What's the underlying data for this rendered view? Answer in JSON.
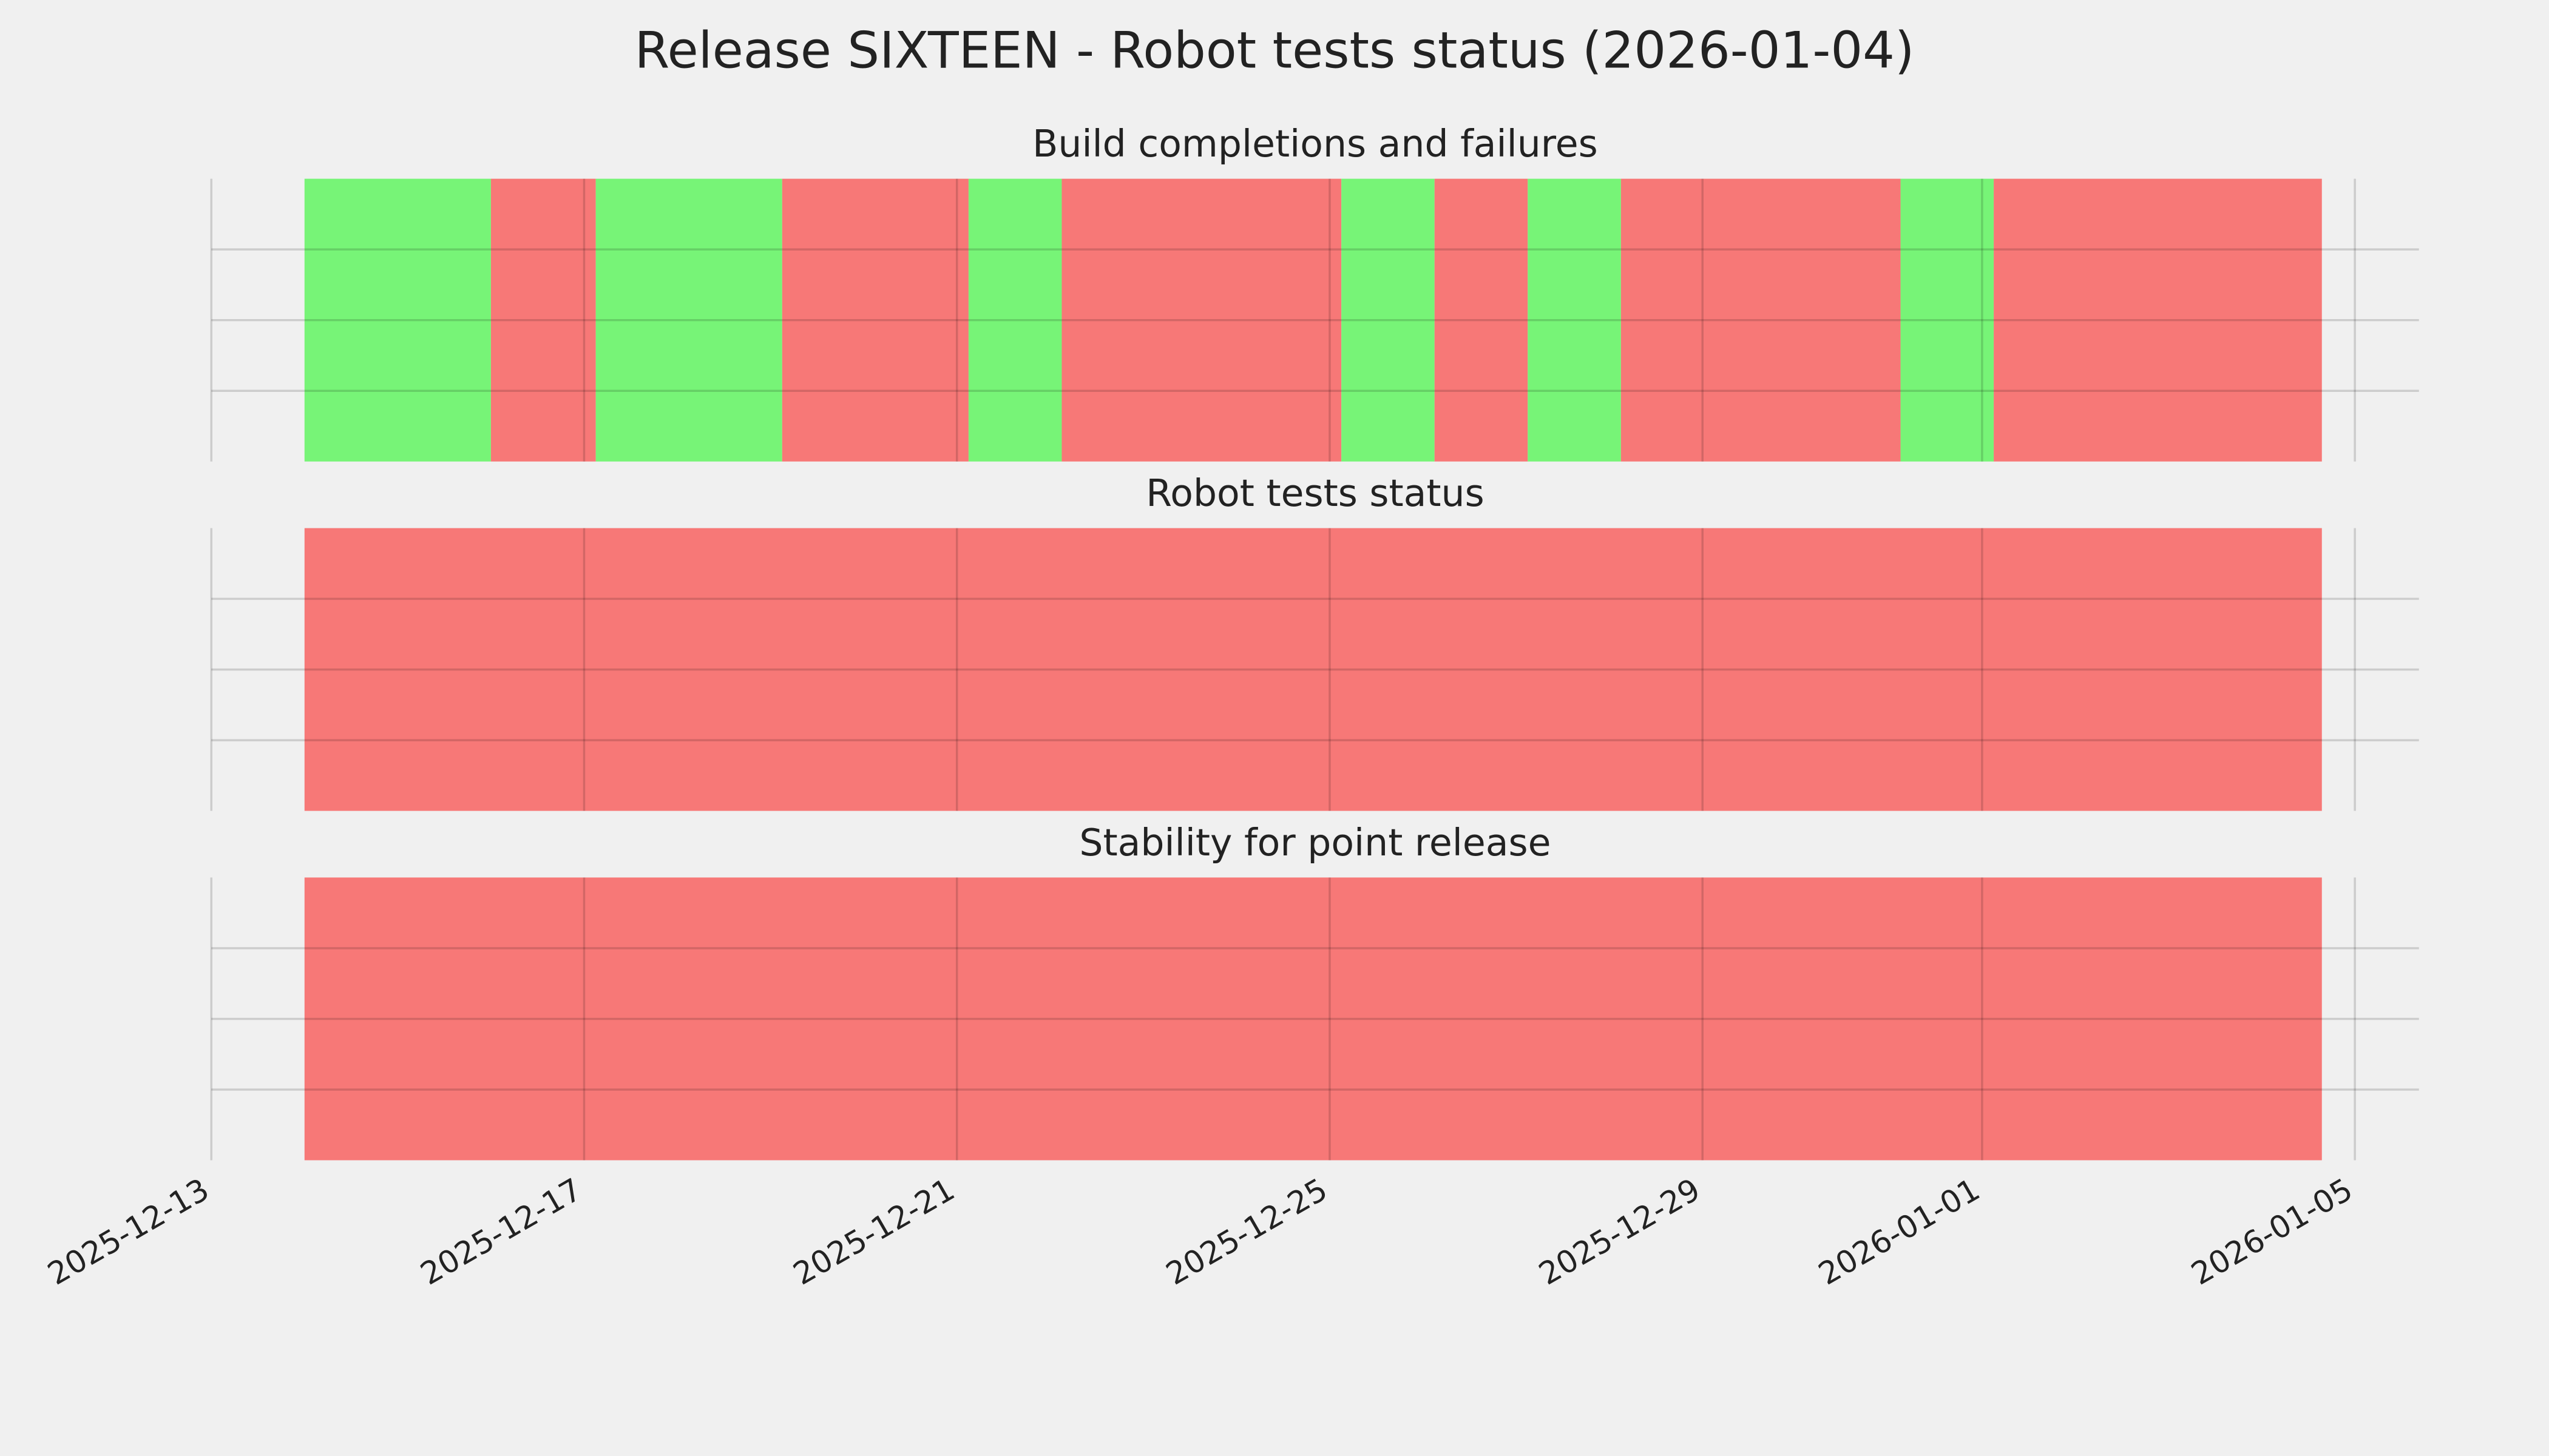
{
  "title": "Release SIXTEEN - Robot tests status (2026-01-04)",
  "chart_data": [
    {
      "type": "timeline",
      "title": "Build completions and failures",
      "starts": [
        "2025-12-14",
        "2025-12-16",
        "2025-12-17T03:00",
        "2025-12-19T03:00",
        "2025-12-21T03:00",
        "2025-12-22T03:00",
        "2025-12-25T03:00",
        "2025-12-26T03:00",
        "2025-12-27T03:00",
        "2025-12-28T03:00",
        "2025-12-31T03:00",
        "2026-01-01T03:00"
      ],
      "ends": [
        "2025-12-16",
        "2025-12-17T03:00",
        "2025-12-19T03:00",
        "2025-12-21T03:00",
        "2025-12-22T03:00",
        "2025-12-25T03:00",
        "2025-12-26T03:00",
        "2025-12-27T03:00",
        "2025-12-28T03:00",
        "2025-12-31T03:00",
        "2026-01-01T03:00",
        "2026-01-04T15:30"
      ],
      "colors": [
        "#77f477",
        "#f77877",
        "#77f477",
        "#f77877",
        "#77f477",
        "#f77877",
        "#77f477",
        "#f77877",
        "#77f477",
        "#f77877",
        "#77f477",
        "#f77877"
      ],
      "xlim": [
        "2025-12-13",
        "2026-01-05T16:30"
      ],
      "xticks": [
        "2025-12-13",
        "2025-12-17",
        "2025-12-21",
        "2025-12-25",
        "2025-12-29",
        "2026-01-01",
        "2026-01-05"
      ],
      "ylim": [
        0,
        1
      ],
      "yticks": [
        0.25,
        0.5,
        0.75
      ],
      "grid": true,
      "show_xtick_labels": false
    },
    {
      "type": "timeline",
      "title": "Robot tests status",
      "starts": [
        "2025-12-14"
      ],
      "ends": [
        "2026-01-04T15:30"
      ],
      "colors": [
        "#f77877"
      ],
      "xlim": [
        "2025-12-13",
        "2026-01-05T16:30"
      ],
      "xticks": [
        "2025-12-13",
        "2025-12-17",
        "2025-12-21",
        "2025-12-25",
        "2025-12-29",
        "2026-01-01",
        "2026-01-05"
      ],
      "ylim": [
        0,
        1
      ],
      "yticks": [
        0.25,
        0.5,
        0.75
      ],
      "grid": true,
      "show_xtick_labels": false
    },
    {
      "type": "timeline",
      "title": "Stability for point release",
      "starts": [
        "2025-12-14"
      ],
      "ends": [
        "2026-01-04T15:30"
      ],
      "colors": [
        "#f77877"
      ],
      "xlim": [
        "2025-12-13",
        "2026-01-05T16:30"
      ],
      "xticks": [
        "2025-12-13",
        "2025-12-17",
        "2025-12-21",
        "2025-12-25",
        "2025-12-29",
        "2026-01-01",
        "2026-01-05"
      ],
      "ylim": [
        0,
        1
      ],
      "yticks": [
        0.25,
        0.5,
        0.75
      ],
      "grid": true,
      "show_xtick_labels": true
    }
  ]
}
